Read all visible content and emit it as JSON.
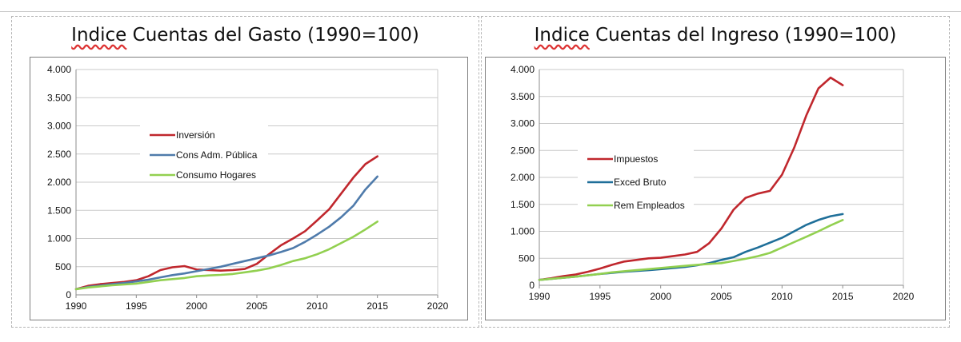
{
  "chart_data": [
    {
      "type": "line",
      "title": "Indice Cuentas del Gasto (1990=100)",
      "title_parts": [
        "Indice",
        " Cuentas del Gasto (1990=100)"
      ],
      "xlabel": "",
      "ylabel": "",
      "xlim": [
        1990,
        2020
      ],
      "ylim": [
        0,
        4000
      ],
      "xticks": [
        1990,
        1995,
        2000,
        2005,
        2010,
        2015,
        2020
      ],
      "xtick_labels": [
        "1990",
        "1995",
        "2000",
        "2005",
        "2010",
        "2015",
        "2020"
      ],
      "yticks": [
        0,
        500,
        1000,
        1500,
        2000,
        2500,
        3000,
        3500,
        4000
      ],
      "ytick_labels": [
        "0",
        "500",
        "1.000",
        "1.500",
        "2.000",
        "2.500",
        "3.000",
        "3.500",
        "4.000"
      ],
      "grid": "horizontal",
      "legend_position": "upper-left",
      "series": [
        {
          "name": "Inversión",
          "color": "#c0272d",
          "x": [
            1990,
            1991,
            1992,
            1993,
            1994,
            1995,
            1996,
            1997,
            1998,
            1999,
            2000,
            2001,
            2002,
            2003,
            2004,
            2005,
            2006,
            2007,
            2008,
            2009,
            2010,
            2011,
            2012,
            2013,
            2014,
            2015
          ],
          "values": [
            100,
            160,
            190,
            210,
            230,
            260,
            330,
            440,
            490,
            510,
            450,
            440,
            430,
            440,
            460,
            550,
            720,
            880,
            1000,
            1130,
            1320,
            1520,
            1800,
            2080,
            2320,
            2460
          ]
        },
        {
          "name": "Cons Adm. Pública",
          "color": "#4f7bab",
          "x": [
            1990,
            1991,
            1992,
            1993,
            1994,
            1995,
            1996,
            1997,
            1998,
            1999,
            2000,
            2001,
            2002,
            2003,
            2004,
            2005,
            2006,
            2007,
            2008,
            2009,
            2010,
            2011,
            2012,
            2013,
            2014,
            2015
          ],
          "values": [
            100,
            140,
            165,
            190,
            210,
            240,
            270,
            310,
            350,
            380,
            420,
            460,
            500,
            550,
            600,
            650,
            700,
            760,
            830,
            940,
            1070,
            1210,
            1380,
            1580,
            1870,
            2100
          ]
        },
        {
          "name": "Consumo Hogares",
          "color": "#92d050",
          "x": [
            1990,
            1991,
            1992,
            1993,
            1994,
            1995,
            1996,
            1997,
            1998,
            1999,
            2000,
            2001,
            2002,
            2003,
            2004,
            2005,
            2006,
            2007,
            2008,
            2009,
            2010,
            2011,
            2012,
            2013,
            2014,
            2015
          ],
          "values": [
            100,
            130,
            150,
            170,
            185,
            200,
            230,
            260,
            280,
            300,
            330,
            345,
            355,
            370,
            400,
            430,
            470,
            530,
            600,
            650,
            720,
            810,
            920,
            1030,
            1160,
            1300
          ]
        }
      ]
    },
    {
      "type": "line",
      "title": "Indice Cuentas del Ingreso (1990=100)",
      "title_parts": [
        "Indice",
        " Cuentas del Ingreso (1990=100)"
      ],
      "xlabel": "",
      "ylabel": "",
      "xlim": [
        1990,
        2020
      ],
      "ylim": [
        0,
        4000
      ],
      "xticks": [
        1990,
        1995,
        2000,
        2005,
        2010,
        2015,
        2020
      ],
      "xtick_labels": [
        "1990",
        "1995",
        "2000",
        "2005",
        "2010",
        "2015",
        "2020"
      ],
      "yticks": [
        0,
        500,
        1000,
        1500,
        2000,
        2500,
        3000,
        3500,
        4000
      ],
      "ytick_labels": [
        "0",
        "500",
        "1.000",
        "1.500",
        "2.000",
        "2.500",
        "3.000",
        "3.500",
        "4.000"
      ],
      "grid": "horizontal",
      "legend_position": "center-left",
      "series": [
        {
          "name": "Impuestos",
          "color": "#c0272d",
          "x": [
            1990,
            1991,
            1992,
            1993,
            1994,
            1995,
            1996,
            1997,
            1998,
            1999,
            2000,
            2001,
            2002,
            2003,
            2004,
            2005,
            2006,
            2007,
            2008,
            2009,
            2010,
            2011,
            2012,
            2013,
            2014,
            2015
          ],
          "values": [
            100,
            130,
            170,
            200,
            250,
            310,
            380,
            440,
            470,
            500,
            510,
            540,
            570,
            620,
            780,
            1050,
            1400,
            1620,
            1700,
            1750,
            2050,
            2550,
            3150,
            3650,
            3850,
            3710
          ]
        },
        {
          "name": "Exced Bruto",
          "color": "#1f6f99",
          "x": [
            1990,
            1991,
            1992,
            1993,
            1994,
            1995,
            1996,
            1997,
            1998,
            1999,
            2000,
            2001,
            2002,
            2003,
            2004,
            2005,
            2006,
            2007,
            2008,
            2009,
            2010,
            2011,
            2012,
            2013,
            2014,
            2015
          ],
          "values": [
            100,
            120,
            140,
            160,
            185,
            210,
            230,
            250,
            265,
            280,
            300,
            320,
            340,
            370,
            410,
            470,
            520,
            620,
            700,
            790,
            880,
            1000,
            1120,
            1210,
            1280,
            1320
          ]
        },
        {
          "name": "Rem Empleados",
          "color": "#92d050",
          "x": [
            1990,
            1991,
            1992,
            1993,
            1994,
            1995,
            1996,
            1997,
            1998,
            1999,
            2000,
            2001,
            2002,
            2003,
            2004,
            2005,
            2006,
            2007,
            2008,
            2009,
            2010,
            2011,
            2012,
            2013,
            2014,
            2015
          ],
          "values": [
            100,
            120,
            140,
            160,
            185,
            210,
            240,
            260,
            280,
            300,
            320,
            340,
            360,
            380,
            395,
            410,
            450,
            490,
            540,
            600,
            700,
            800,
            900,
            1000,
            1110,
            1210
          ]
        }
      ]
    }
  ]
}
